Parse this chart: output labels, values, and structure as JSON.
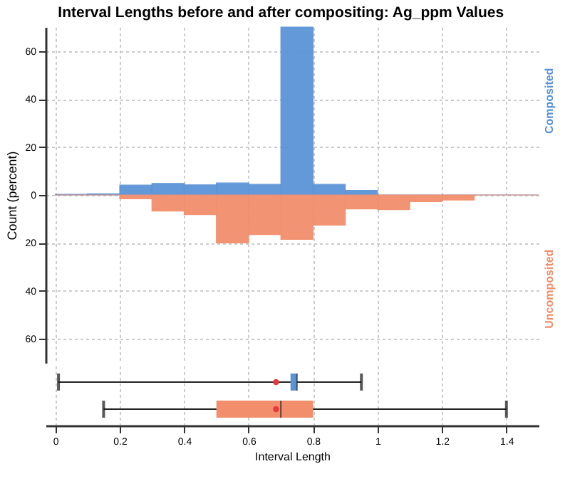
{
  "chart_data": [
    {
      "type": "histogram",
      "title": "Interval Lengths before and after compositing: Ag_ppm Values",
      "ylabel": "Count (percent)",
      "bins": [
        0,
        0.1,
        0.2,
        0.3,
        0.4,
        0.5,
        0.6,
        0.7,
        0.8,
        0.9,
        1.0,
        1.1,
        1.2,
        1.3,
        1.4,
        1.5
      ],
      "series": [
        {
          "name": "Composited",
          "color": "#5b93d8",
          "values": [
            0.3,
            0.5,
            4.1,
            4.8,
            4.2,
            5,
            4.4,
            70,
            4.4,
            1.9,
            0,
            0,
            0,
            0,
            0
          ]
        },
        {
          "name": "Uncomposited",
          "color": "#f28e6c",
          "values": [
            0,
            0,
            -1.6,
            -6.7,
            -8.2,
            -20,
            -16.5,
            -18.5,
            -12.6,
            -5.8,
            -6.1,
            -2.8,
            -2.1,
            0,
            0
          ]
        }
      ],
      "xlim": [
        -0.03,
        1.5
      ],
      "xticks": [
        0,
        0.2,
        0.4,
        0.6,
        0.8,
        1,
        1.2,
        1.4
      ],
      "ylim": [
        -70,
        70
      ],
      "yticks": [
        {
          "value": -60,
          "label": "60"
        },
        {
          "value": -40,
          "label": "40"
        },
        {
          "value": -20,
          "label": "20"
        },
        0,
        20,
        40,
        60
      ],
      "grid": true,
      "tick_labels": "y"
    },
    {
      "type": "box",
      "orientation": "horizontal",
      "xlabel": "Interval Length",
      "categories": [
        null,
        null
      ],
      "colors": [
        "#5b93d8",
        "#f28e6c"
      ],
      "boxes": [
        {
          "low": 0.01,
          "q1": 0.73,
          "median": 0.75,
          "q3": 0.75,
          "high": 0.95,
          "mean": 0.685
        },
        {
          "low": 0.15,
          "q1": 0.5,
          "median": 0.7,
          "q3": 0.8,
          "high": 1.4,
          "mean": 0.685
        }
      ],
      "xlim": [
        -0.03,
        1.5
      ],
      "xticks": [
        0,
        0.2,
        0.4,
        0.6,
        0.8,
        1,
        1.2,
        1.4
      ],
      "grid": "x"
    }
  ]
}
